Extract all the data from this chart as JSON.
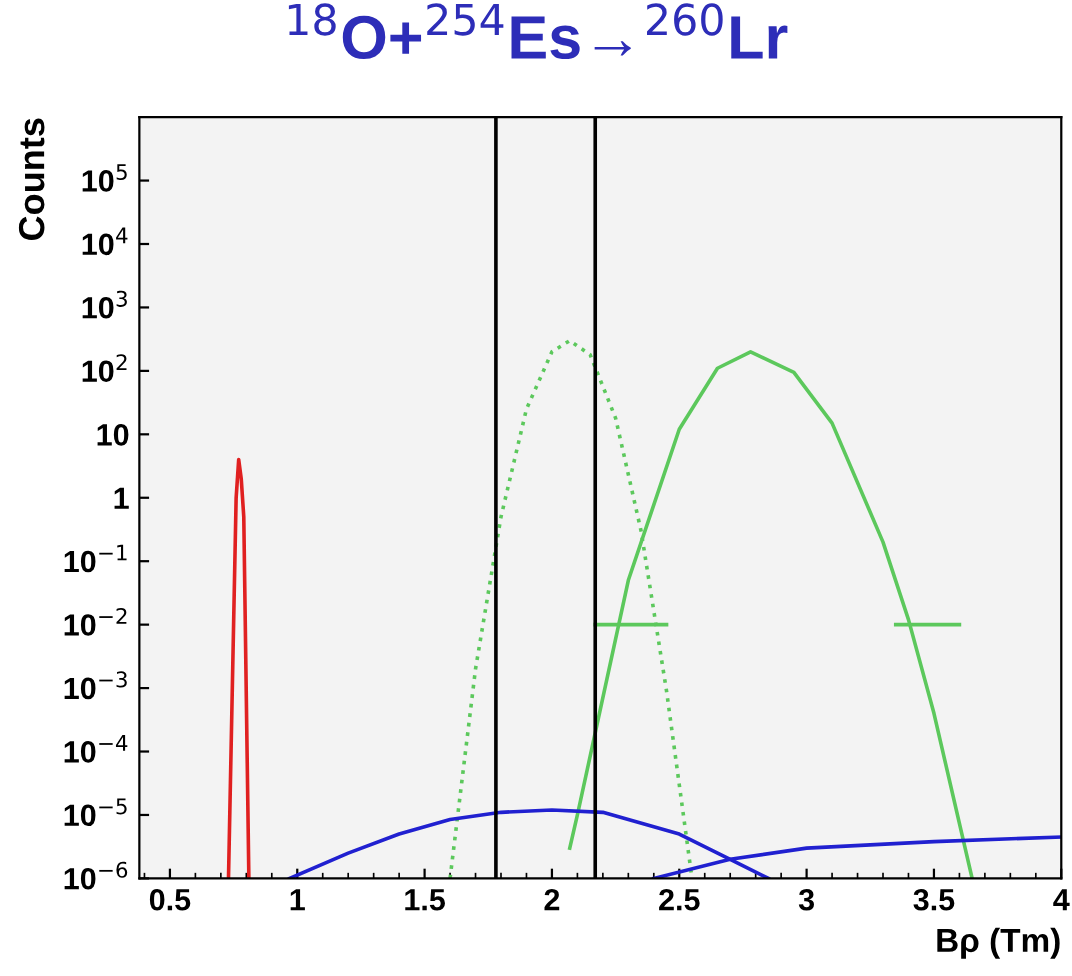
{
  "chart_data": {
    "type": "line",
    "title": "$^{18}$O+$^{254}$Es→$^{260}$Lr",
    "xlabel": "Bρ (Tm)",
    "ylabel": "Counts",
    "log": "y",
    "grid": false,
    "legend": false,
    "marker": "none",
    "xlim": [
      0.38,
      4.0
    ],
    "xticks": [
      0.5,
      1,
      1.5,
      2,
      2.5,
      3,
      3.5,
      4
    ],
    "ylim": [
      1e-06,
      1000000.0
    ],
    "yticks": [
      {
        "value": 1e-06,
        "label": "10$^{−6}$"
      },
      {
        "value": 1e-05,
        "label": "10$^{−5}$"
      },
      {
        "value": 0.0001,
        "label": "10$^{−4}$"
      },
      {
        "value": 0.001,
        "label": "10$^{−3}$"
      },
      {
        "value": 0.01,
        "label": "10$^{−2}$"
      },
      {
        "value": 0.1,
        "label": "10$^{−1}$"
      },
      1,
      10,
      {
        "value": 100,
        "label": "10$^{2}$"
      },
      {
        "value": 1000,
        "label": "10$^{3}$"
      },
      {
        "value": 10000,
        "label": "10$^{4}$"
      },
      {
        "value": 100000,
        "label": "10$^{5}$"
      }
    ],
    "ref_lines": [
      {
        "axis": "x",
        "value": 1.78,
        "label": null,
        "color": "#000000"
      },
      {
        "axis": "x",
        "value": 2.17,
        "label": null,
        "color": "#000000"
      }
    ],
    "series": [
      {
        "color": "#e02020",
        "x": [
          0.73,
          0.75,
          0.76,
          0.77,
          0.78,
          0.79,
          0.81
        ],
        "values": [
          1e-06,
          0.01,
          1,
          4,
          2,
          0.5,
          1e-06
        ]
      },
      {
        "color": "#5cc85c",
        "line_style": "dotted",
        "x": [
          1.6,
          1.7,
          1.8,
          1.9,
          2.0,
          2.07,
          2.15,
          2.25,
          2.35,
          2.45,
          2.55
        ],
        "values": [
          1e-06,
          0.002,
          0.5,
          25,
          200,
          300,
          180,
          18,
          0.3,
          0.0009,
          1e-06
        ]
      },
      {
        "color": "#5cc85c",
        "line_style": "solid",
        "x": [
          2.07,
          2.1,
          2.3,
          2.5,
          2.65,
          2.78,
          2.95,
          3.1,
          3.3,
          3.4,
          3.5,
          3.65
        ],
        "values": [
          3e-06,
          1e-05,
          0.05,
          12,
          110,
          200,
          95,
          15,
          0.2,
          0.012,
          0.0004,
          1e-06
        ]
      },
      {
        "color": "#5cc85c",
        "line_style": "solid",
        "x": [
          2.17,
          2.45
        ],
        "values": [
          0.01,
          0.01
        ]
      },
      {
        "color": "#5cc85c",
        "line_style": "solid",
        "x": [
          3.35,
          3.6
        ],
        "values": [
          0.01,
          0.01
        ]
      },
      {
        "color": "#2020d0",
        "line_style": "solid",
        "x": [
          0.97,
          1.2,
          1.4,
          1.6,
          1.8,
          2.0,
          2.2,
          2.5,
          2.7,
          2.85
        ],
        "values": [
          1e-06,
          2.5e-06,
          5e-06,
          8.5e-06,
          1.1e-05,
          1.2e-05,
          1.1e-05,
          5e-06,
          2e-06,
          1e-06
        ]
      },
      {
        "color": "#2020d0",
        "line_style": "solid",
        "x": [
          2.4,
          2.7,
          3.0,
          3.5,
          4.0
        ],
        "values": [
          1e-06,
          2e-06,
          3e-06,
          3.8e-06,
          4.5e-06
        ]
      }
    ]
  }
}
